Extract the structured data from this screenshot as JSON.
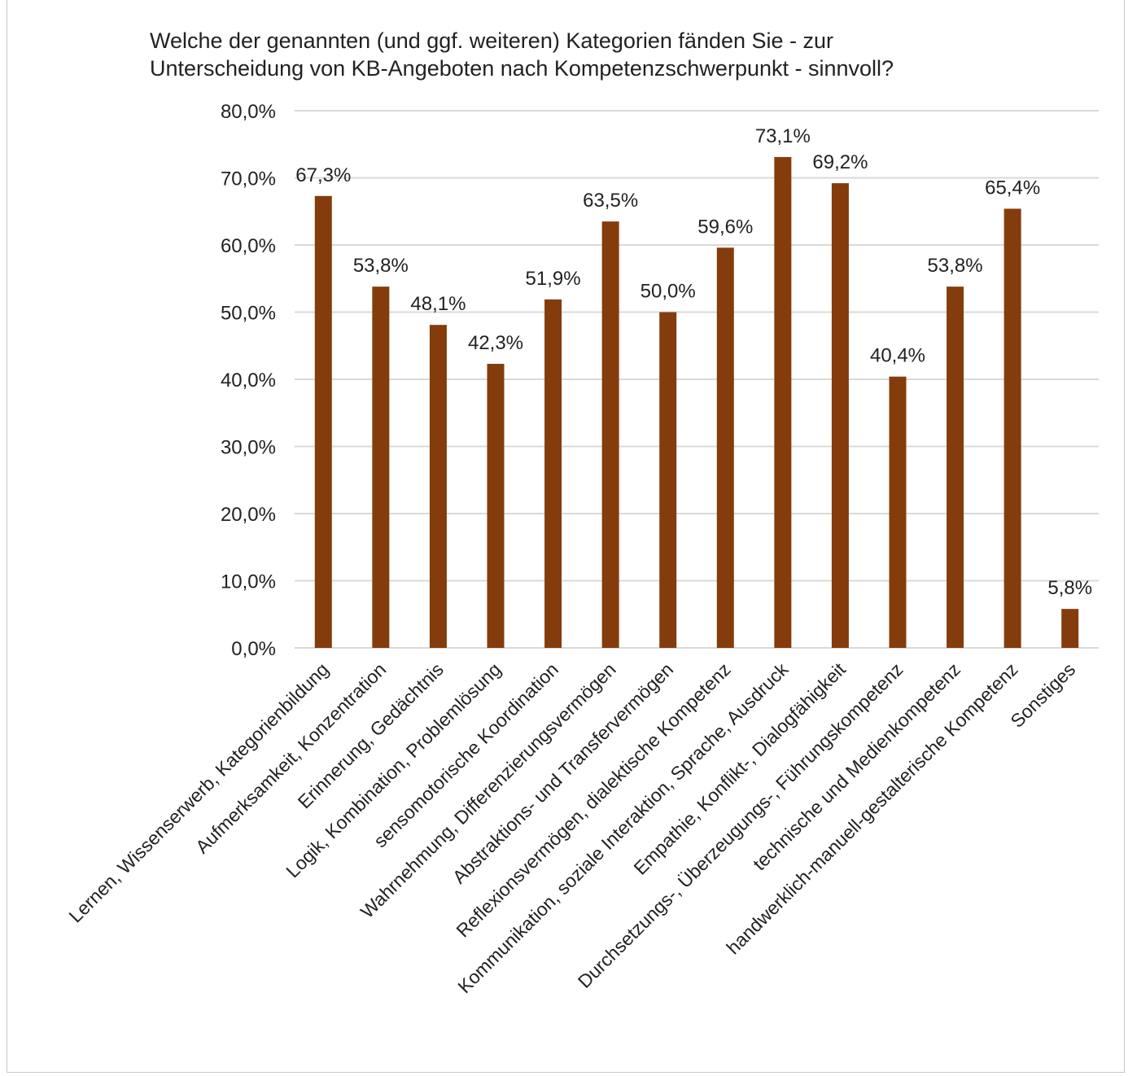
{
  "colors": {
    "bar": "#843C0C",
    "grid": "#d9d9d9",
    "text": "#222222"
  },
  "chart_data": {
    "type": "bar",
    "title_lines": [
      "Welche der genannten (und ggf. weiteren) Kategorien fänden Sie - zur",
      "Unterscheidung von KB-Angeboten nach Kompetenzschwerpunkt - sinnvoll?"
    ],
    "categories": [
      "Lernen, Wissenserwerb, Kategorienbildung",
      "Aufmerksamkeit, Konzentration",
      "Erinnerung, Gedächtnis",
      "Logik, Kombination, Problemlösung",
      "sensomotorische Koordination",
      "Wahrnehmung, Differenzierungsvermögen",
      "Abstraktions- und Transfervermögen",
      "Reflexionsvermögen, dialektische Kompetenz",
      "Kommunikation, soziale Interaktion, Sprache, Ausdruck",
      "Empathie, Konflikt-, Dialogfähigkeit",
      "Durchsetzungs-, Überzeugungs-, Führungskompetenz",
      "technische und Medienkompetenz",
      "handwerklich-manuell-gestalterische Kompetenz",
      "Sonstiges"
    ],
    "values": [
      67.3,
      53.8,
      48.1,
      42.3,
      51.9,
      63.5,
      50.0,
      59.6,
      73.1,
      69.2,
      40.4,
      53.8,
      65.4,
      5.8
    ],
    "data_labels": [
      "67,3%",
      "53,8%",
      "48,1%",
      "42,3%",
      "51,9%",
      "63,5%",
      "50,0%",
      "59,6%",
      "73,1%",
      "69,2%",
      "40,4%",
      "53,8%",
      "65,4%",
      "5,8%"
    ],
    "yticks": [
      "0,0%",
      "10,0%",
      "20,0%",
      "30,0%",
      "40,0%",
      "50,0%",
      "60,0%",
      "70,0%",
      "80,0%"
    ],
    "ylim": [
      0,
      80
    ],
    "grid": true,
    "legend": "none"
  }
}
